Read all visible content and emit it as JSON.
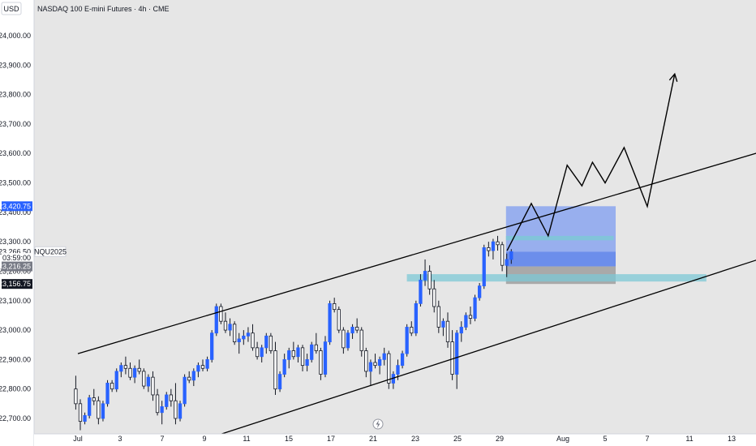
{
  "header": {
    "currency": "USD",
    "title": "NASDAQ 100 E-mini Futures · 4h · CME"
  },
  "chart_data": {
    "type": "candlestick",
    "title": "NASDAQ 100 E-mini Futures · 4h · CME",
    "symbol": "NQU2025",
    "currency": "USD",
    "ylim": [
      22640,
      24080
    ],
    "y_ticks": [
      "24,000.00",
      "23,900.00",
      "23,800.00",
      "23,700.00",
      "23,600.00",
      "23,500.00",
      "23,400.00",
      "23,300.00",
      "23,200.00",
      "23,100.00",
      "23,000.00",
      "22,900.00",
      "22,800.00",
      "22,700.00"
    ],
    "y_tick_values": [
      24000,
      23900,
      23800,
      23700,
      23600,
      23500,
      23400,
      23300,
      23200,
      23100,
      23000,
      22900,
      22800,
      22700
    ],
    "x_ticks": [
      {
        "label": "Jul",
        "day": 0
      },
      {
        "label": "3",
        "day": 2
      },
      {
        "label": "7",
        "day": 4
      },
      {
        "label": "9",
        "day": 6
      },
      {
        "label": "11",
        "day": 8
      },
      {
        "label": "15",
        "day": 10
      },
      {
        "label": "17",
        "day": 12
      },
      {
        "label": "21",
        "day": 14
      },
      {
        "label": "23",
        "day": 16
      },
      {
        "label": "25",
        "day": 18
      },
      {
        "label": "29",
        "day": 20
      },
      {
        "label": "Aug",
        "day": 23
      },
      {
        "label": "5",
        "day": 25
      },
      {
        "label": "7",
        "day": 27
      },
      {
        "label": "11",
        "day": 29
      },
      {
        "label": "13",
        "day": 31
      },
      {
        "label": "13",
        "day": 33
      }
    ],
    "price_labels": [
      {
        "text": "23,420.75",
        "value": 23420.75,
        "bg": "#2962ff",
        "fg": "#ffffff"
      },
      {
        "text": "23,266.50",
        "value": 23266.5,
        "bg": "#ffffff",
        "fg": "#131722"
      },
      {
        "text": "03:59:00",
        "value": 23245,
        "bg": "#ffffff",
        "fg": "#131722"
      },
      {
        "text": "23,216.25",
        "value": 23216.25,
        "bg": "#787b86",
        "fg": "#ffffff"
      },
      {
        "text": "23,156.75",
        "value": 23156.75,
        "bg": "#131722",
        "fg": "#ffffff"
      }
    ],
    "symbol_label": {
      "text": "NQU2025",
      "value": 23266.5
    },
    "candles": [
      [
        22800,
        22845,
        22730,
        22750
      ],
      [
        22750,
        22765,
        22660,
        22690
      ],
      [
        22690,
        22720,
        22680,
        22710
      ],
      [
        22710,
        22780,
        22700,
        22770
      ],
      [
        22770,
        22800,
        22745,
        22760
      ],
      [
        22760,
        22775,
        22680,
        22700
      ],
      [
        22700,
        22760,
        22690,
        22750
      ],
      [
        22750,
        22830,
        22740,
        22820
      ],
      [
        22820,
        22830,
        22790,
        22800
      ],
      [
        22800,
        22870,
        22790,
        22860
      ],
      [
        22860,
        22890,
        22840,
        22880
      ],
      [
        22880,
        22910,
        22850,
        22870
      ],
      [
        22870,
        22890,
        22830,
        22840
      ],
      [
        22840,
        22880,
        22820,
        22870
      ],
      [
        22870,
        22900,
        22850,
        22860
      ],
      [
        22860,
        22870,
        22800,
        22810
      ],
      [
        22810,
        22850,
        22790,
        22840
      ],
      [
        22840,
        22860,
        22760,
        22780
      ],
      [
        22780,
        22800,
        22710,
        22720
      ],
      [
        22720,
        22760,
        22680,
        22740
      ],
      [
        22740,
        22790,
        22730,
        22780
      ],
      [
        22780,
        22800,
        22740,
        22760
      ],
      [
        22760,
        22820,
        22680,
        22700
      ],
      [
        22700,
        22760,
        22690,
        22750
      ],
      [
        22750,
        22850,
        22740,
        22840
      ],
      [
        22840,
        22860,
        22820,
        22830
      ],
      [
        22830,
        22870,
        22810,
        22860
      ],
      [
        22860,
        22890,
        22840,
        22880
      ],
      [
        22880,
        22900,
        22860,
        22870
      ],
      [
        22870,
        22910,
        22860,
        22900
      ],
      [
        22900,
        23000,
        22890,
        22990
      ],
      [
        22990,
        23090,
        22980,
        23080
      ],
      [
        23080,
        23090,
        23020,
        23030
      ],
      [
        23030,
        23060,
        22990,
        23000
      ],
      [
        23000,
        23040,
        22980,
        23020
      ],
      [
        23020,
        23030,
        22950,
        22960
      ],
      [
        22960,
        22990,
        22920,
        22970
      ],
      [
        22970,
        23000,
        22950,
        22980
      ],
      [
        22980,
        23010,
        22960,
        22990
      ],
      [
        22990,
        23020,
        22930,
        22940
      ],
      [
        22940,
        22960,
        22900,
        22910
      ],
      [
        22910,
        22950,
        22890,
        22940
      ],
      [
        22940,
        22990,
        22920,
        22980
      ],
      [
        22980,
        22990,
        22920,
        22930
      ],
      [
        22930,
        22960,
        22780,
        22800
      ],
      [
        22800,
        22860,
        22790,
        22850
      ],
      [
        22850,
        22920,
        22840,
        22900
      ],
      [
        22900,
        22940,
        22870,
        22930
      ],
      [
        22930,
        22960,
        22900,
        22910
      ],
      [
        22910,
        22950,
        22890,
        22940
      ],
      [
        22940,
        22950,
        22860,
        22880
      ],
      [
        22880,
        22920,
        22860,
        22900
      ],
      [
        22900,
        22960,
        22890,
        22950
      ],
      [
        22950,
        22990,
        22920,
        22930
      ],
      [
        22930,
        22940,
        22830,
        22850
      ],
      [
        22850,
        22980,
        22840,
        22960
      ],
      [
        22960,
        23100,
        22950,
        23090
      ],
      [
        23090,
        23110,
        23060,
        23070
      ],
      [
        23070,
        23080,
        22990,
        23000
      ],
      [
        23000,
        23010,
        22920,
        22940
      ],
      [
        22940,
        23000,
        22930,
        22990
      ],
      [
        22990,
        23020,
        22970,
        23010
      ],
      [
        23010,
        23040,
        22990,
        23000
      ],
      [
        23000,
        23010,
        22910,
        22930
      ],
      [
        22930,
        22940,
        22840,
        22860
      ],
      [
        22860,
        22900,
        22810,
        22890
      ],
      [
        22890,
        22920,
        22870,
        22880
      ],
      [
        22880,
        22910,
        22850,
        22900
      ],
      [
        22900,
        22940,
        22880,
        22920
      ],
      [
        22920,
        22930,
        22800,
        22820
      ],
      [
        22820,
        22860,
        22800,
        22850
      ],
      [
        22850,
        22900,
        22830,
        22880
      ],
      [
        22880,
        22930,
        22870,
        22920
      ],
      [
        22920,
        23020,
        22910,
        23010
      ],
      [
        23010,
        23030,
        22980,
        22990
      ],
      [
        22990,
        23100,
        22980,
        23090
      ],
      [
        23090,
        23190,
        23080,
        23170
      ],
      [
        23170,
        23240,
        23150,
        23200
      ],
      [
        23200,
        23220,
        23120,
        23140
      ],
      [
        23140,
        23170,
        23060,
        23080
      ],
      [
        23080,
        23100,
        22990,
        23010
      ],
      [
        23010,
        23040,
        22980,
        23030
      ],
      [
        23030,
        23060,
        22940,
        22960
      ],
      [
        22960,
        23000,
        22830,
        22850
      ],
      [
        22850,
        23000,
        22800,
        22990
      ],
      [
        22990,
        23030,
        22960,
        23010
      ],
      [
        23010,
        23060,
        23000,
        23050
      ],
      [
        23050,
        23080,
        23020,
        23040
      ],
      [
        23040,
        23120,
        23030,
        23110
      ],
      [
        23110,
        23160,
        23100,
        23150
      ],
      [
        23150,
        23290,
        23140,
        23280
      ],
      [
        23280,
        23300,
        23250,
        23270
      ],
      [
        23270,
        23310,
        23240,
        23300
      ],
      [
        23300,
        23320,
        23270,
        23290
      ],
      [
        23290,
        23300,
        23200,
        23220
      ],
      [
        23220,
        23260,
        23180,
        23240
      ],
      [
        23240,
        23275,
        23225,
        23266.5
      ]
    ],
    "channel_upper": [
      [
        0,
        22920
      ],
      [
        43,
        23830
      ]
    ],
    "channel_lower": [
      [
        6.5,
        22640
      ],
      [
        43,
        23490
      ]
    ],
    "projection_path": [
      [
        20.35,
        23270
      ],
      [
        21.5,
        23430
      ],
      [
        22.3,
        23320
      ],
      [
        23.2,
        23560
      ],
      [
        23.9,
        23490
      ],
      [
        24.4,
        23570
      ],
      [
        25.0,
        23500
      ],
      [
        25.9,
        23620
      ],
      [
        27.0,
        23420
      ],
      [
        28.3,
        23870
      ]
    ],
    "zones": {
      "target": [
        20.3,
        25.5,
        23420.75,
        23266.5
      ],
      "mid": [
        20.3,
        25.5,
        23266.5,
        23216.25
      ],
      "stop": [
        20.3,
        25.5,
        23216.25,
        23156.75
      ],
      "resistance_band": [
        20.3,
        25.4,
        23320,
        23305
      ],
      "support_band": [
        15.6,
        29.8,
        23190,
        23165
      ]
    },
    "candle_day_span": [
      -0.1,
      20.55
    ],
    "colors": {
      "up": "#2962ff",
      "down": "#131722",
      "channel": "#000000",
      "projection": "#000000",
      "target_zone": "#7e9cf0",
      "mid_zone": "#4d78ec",
      "stop_zone": "#9a9a9a",
      "band": "#7ec8d6"
    },
    "grid": false
  }
}
